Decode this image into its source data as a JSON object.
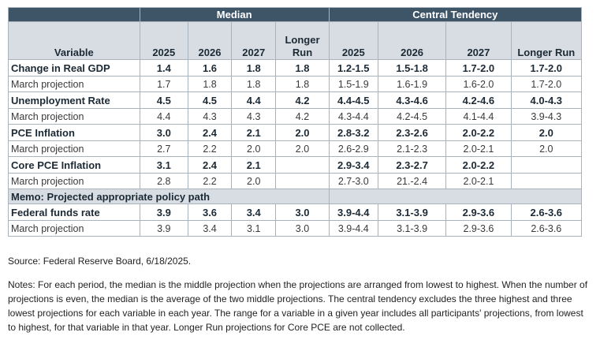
{
  "table": {
    "group_headers": {
      "median": "Median",
      "central": "Central Tendency"
    },
    "columns": {
      "variable": "Variable",
      "m2025": "2025",
      "m2026": "2026",
      "m2027": "2027",
      "mlong": "Longer Run",
      "c2025": "2025",
      "c2026": "2026",
      "c2027": "2027",
      "clong": "Longer Run"
    },
    "rows": [
      {
        "label": "Change in Real GDP",
        "values": [
          "1.4",
          "1.6",
          "1.8",
          "1.8",
          "1.2-1.5",
          "1.5-1.8",
          "1.7-2.0",
          "1.7-2.0"
        ]
      },
      {
        "label": "March projection",
        "values": [
          "1.7",
          "1.8",
          "1.8",
          "1.8",
          "1.5-1.9",
          "1.6-1.9",
          "1.6-2.0",
          "1.7-2.0"
        ]
      },
      {
        "label": "Unemployment Rate",
        "values": [
          "4.5",
          "4.5",
          "4.4",
          "4.2",
          "4.4-4.5",
          "4.3-4.6",
          "4.2-4.6",
          "4.0-4.3"
        ]
      },
      {
        "label": "March projection",
        "values": [
          "4.4",
          "4.3",
          "4.3",
          "4.2",
          "4.3-4.4",
          "4.2-4.5",
          "4.1-4.4",
          "3.9-4.3"
        ]
      },
      {
        "label": "PCE Inflation",
        "values": [
          "3.0",
          "2.4",
          "2.1",
          "2.0",
          "2.8-3.2",
          "2.3-2.6",
          "2.0-2.2",
          "2.0"
        ]
      },
      {
        "label": "March projection",
        "values": [
          "2.7",
          "2.2",
          "2.0",
          "2.0",
          "2.6-2.9",
          "2.1-2.3",
          "2.0-2.1",
          "2.0"
        ]
      },
      {
        "label": "Core PCE Inflation",
        "values": [
          "3.1",
          "2.4",
          "2.1",
          "",
          "2.9-3.4",
          "2.3-2.7",
          "2.0-2.2",
          ""
        ]
      },
      {
        "label": "March projection",
        "values": [
          "2.8",
          "2.2",
          "2.0",
          "",
          "2.7-3.0",
          "21.-2.4",
          "2.0-2.1",
          ""
        ]
      }
    ],
    "memo": "Memo: Projected appropriate policy path",
    "policy_rows": [
      {
        "label": "Federal funds rate",
        "values": [
          "3.9",
          "3.6",
          "3.4",
          "3.0",
          "3.9-4.4",
          "3.1-3.9",
          "2.9-3.6",
          "2.6-3.6"
        ]
      },
      {
        "label": "March projection",
        "values": [
          "3.9",
          "3.4",
          "3.1",
          "3.0",
          "3.9-4.4",
          "3.1-3.9",
          "2.9-3.6",
          "2.6-3.6"
        ]
      }
    ]
  },
  "source": "Source: Federal Reserve Board, 6/18/2025.",
  "notes": "Notes: For each period, the median is the middle projection when the projections are arranged from lowest to highest. When the number of projections is even, the median is the average of the two middle projections. The central tendency excludes the three highest and three lowest projections for each variable in each year. The range for a variable in a given year includes all participants' projections, from lowest to highest, for that variable in that year. Longer Run projections for Core PCE are not collected."
}
